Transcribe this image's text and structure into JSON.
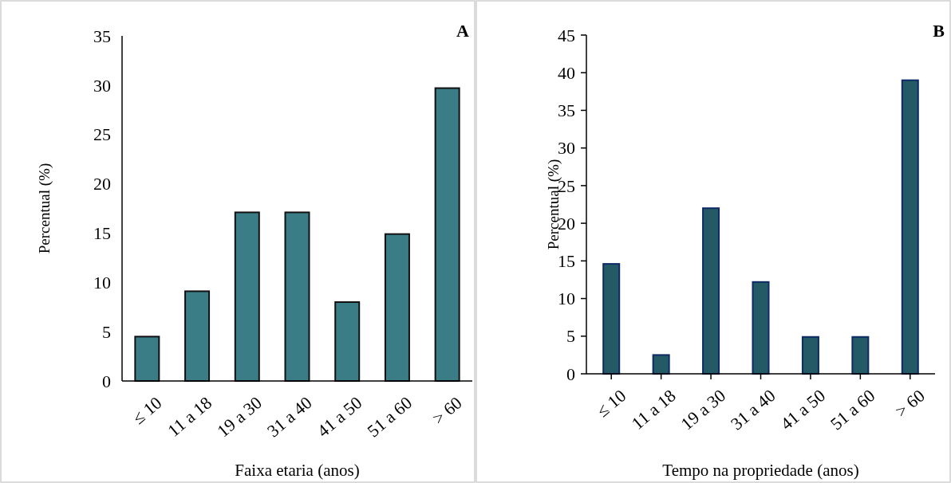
{
  "chart_data": [
    {
      "type": "bar",
      "xlabel": "Faixa etaria (anos)",
      "ylabel": "Percentual (%)",
      "annotations": [
        "A"
      ],
      "categories": [
        "≤ 10",
        "11 a 18",
        "19 a 30",
        "31 a 40",
        "41 a 50",
        "51 a 60",
        "> 60"
      ],
      "values": [
        4.5,
        9.1,
        17.1,
        17.1,
        8.0,
        14.9,
        29.7
      ],
      "color": "#3a7d87",
      "ylim": [
        0,
        35
      ],
      "yticks": [
        0,
        5,
        10,
        15,
        20,
        25,
        30,
        35
      ],
      "grid": false
    },
    {
      "type": "bar",
      "xlabel": "Tempo na propriedade (anos)",
      "ylabel": "Percentual (%)",
      "annotations": [
        "B"
      ],
      "categories": [
        "≤ 10",
        "11 a 18",
        "19 a 30",
        "31 a 40",
        "41 a 50",
        "51 a 60",
        "> 60"
      ],
      "values": [
        14.6,
        2.5,
        22.0,
        12.2,
        4.9,
        4.9,
        39.0
      ],
      "color": "#245a66",
      "ylim": [
        0,
        45
      ],
      "yticks": [
        0,
        5,
        10,
        15,
        20,
        25,
        30,
        35,
        40,
        45
      ],
      "grid": false
    }
  ]
}
